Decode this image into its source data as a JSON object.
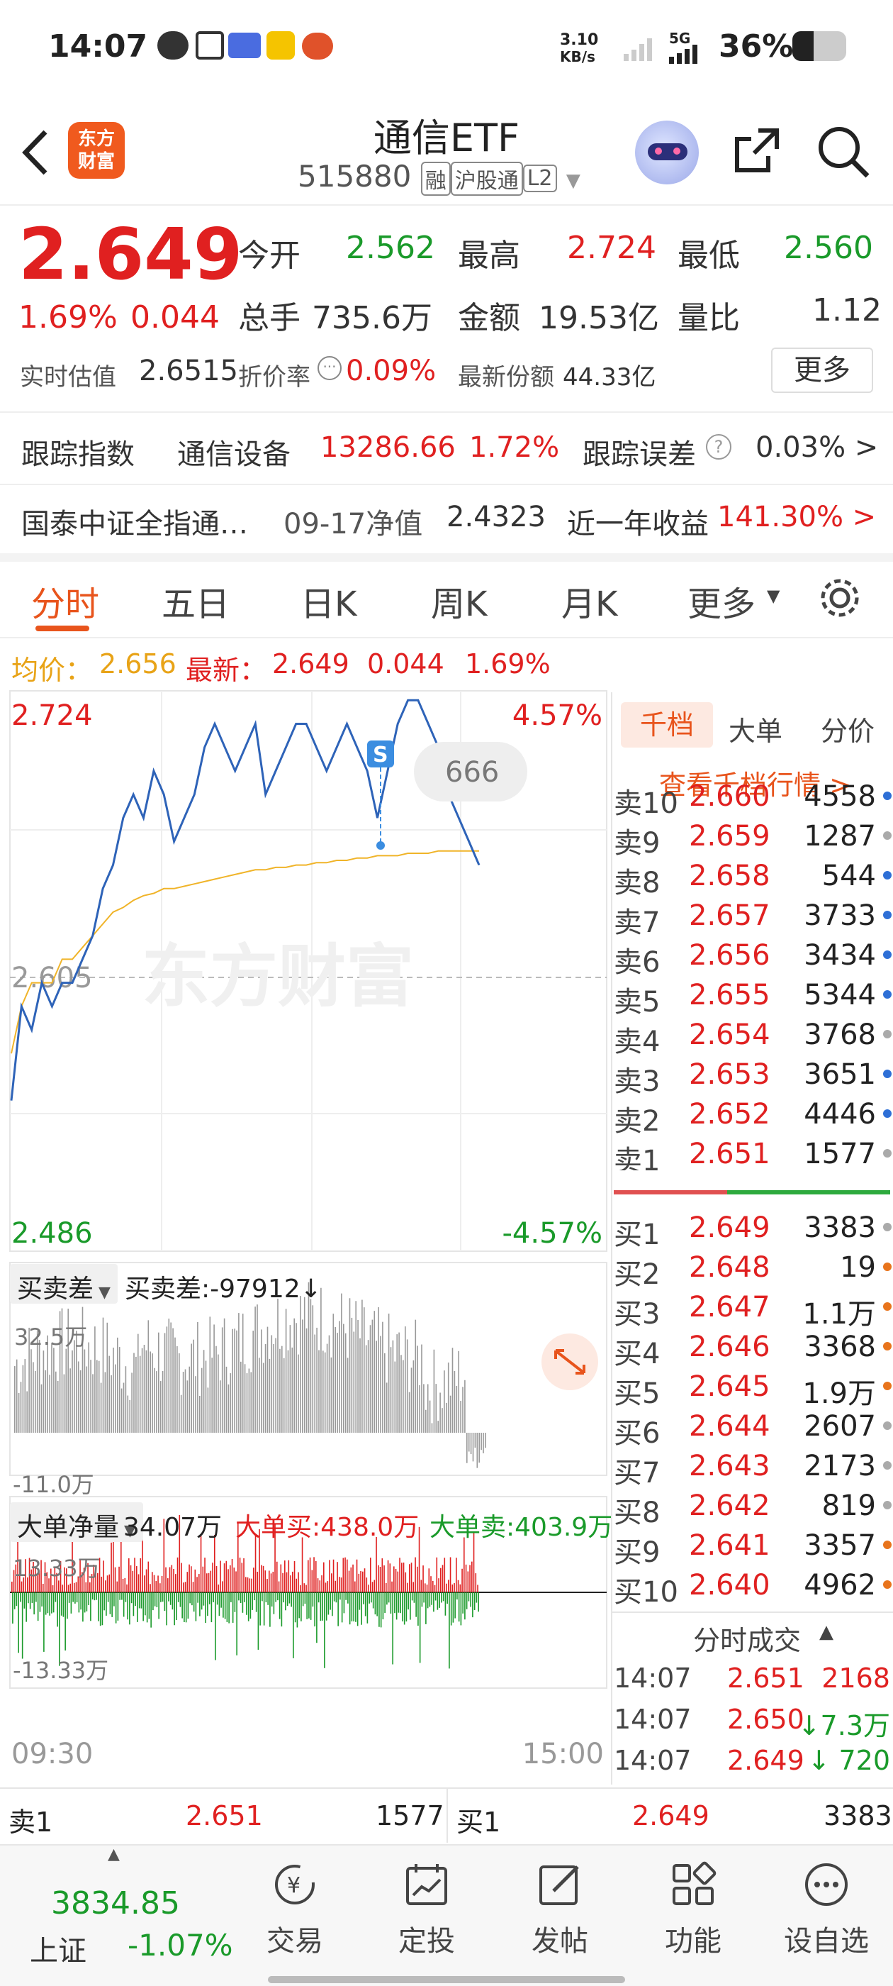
{
  "status": {
    "time": "14:07",
    "speed_top": "3.10",
    "speed_bottom": "KB/s",
    "net": "5G",
    "battery": "36%"
  },
  "header": {
    "logo_line1": "东方",
    "logo_line2": "财富",
    "title": "通信ETF",
    "code": "515880",
    "tag_margin": "融",
    "tag_connect": "沪股通",
    "tag_level": "L2"
  },
  "quote": {
    "price": "2.649",
    "change_pct": "1.69%",
    "change_abs": "0.044",
    "open_label": "今开",
    "open": "2.562",
    "high_label": "最高",
    "high": "2.724",
    "low_label": "最低",
    "low": "2.560",
    "vol_label": "总手",
    "vol": "735.6万",
    "amt_label": "金额",
    "amt": "19.53亿",
    "ratio_label": "量比",
    "ratio": "1.12",
    "iopv_label": "实时估值",
    "iopv": "2.6515",
    "prem_label": "折价率",
    "prem": "0.09%",
    "shares_label": "最新份额",
    "shares": "44.33亿",
    "more": "更多"
  },
  "tracking": {
    "label": "跟踪指数",
    "index": "通信设备",
    "value": "13286.66",
    "pct": "1.72%",
    "err_label": "跟踪误差",
    "err": "0.03% >"
  },
  "fund": {
    "name": "国泰中证全指通…",
    "nav_label": "09-17净值",
    "nav": "2.4323",
    "ret_label": "近一年收益",
    "ret": "141.30% >"
  },
  "tabs": {
    "t1": "分时",
    "t2": "五日",
    "t3": "日K",
    "t4": "周K",
    "t5": "月K",
    "t6": "更多"
  },
  "avgline": {
    "avg_label": "均价：",
    "avg": "2.656",
    "latest_label": "最新：",
    "latest": "2.649",
    "chg": "0.044",
    "pct": "1.69%"
  },
  "chart_data": {
    "type": "line",
    "y_top": "2.724",
    "y_mid": "2.605",
    "y_bottom": "2.486",
    "pct_top": "4.57%",
    "pct_bottom": "-4.57%",
    "x_start": "09:30",
    "x_end": "15:00",
    "bubble": "666",
    "marker": "S",
    "watermark": "东方财富",
    "ylim": [
      2.486,
      2.724
    ],
    "price": [
      2.55,
      2.59,
      2.58,
      2.6,
      2.59,
      2.6,
      2.6,
      2.61,
      2.62,
      2.64,
      2.65,
      2.67,
      2.68,
      2.67,
      2.69,
      2.68,
      2.66,
      2.67,
      2.68,
      2.7,
      2.71,
      2.7,
      2.69,
      2.7,
      2.71,
      2.68,
      2.69,
      2.7,
      2.71,
      2.71,
      2.7,
      2.69,
      2.7,
      2.71,
      2.7,
      2.69,
      2.67,
      2.69,
      2.71,
      2.72,
      2.72,
      2.71,
      2.7,
      2.68,
      2.67,
      2.66,
      2.65
    ],
    "avg": [
      2.57,
      2.59,
      2.6,
      2.6,
      2.6,
      2.61,
      2.61,
      2.615,
      2.62,
      2.625,
      2.63,
      2.632,
      2.635,
      2.637,
      2.638,
      2.64,
      2.64,
      2.641,
      2.642,
      2.643,
      2.644,
      2.645,
      2.646,
      2.647,
      2.648,
      2.648,
      2.649,
      2.649,
      2.65,
      2.65,
      2.651,
      2.651,
      2.652,
      2.652,
      2.653,
      2.653,
      2.654,
      2.654,
      2.654,
      2.655,
      2.655,
      2.655,
      2.656,
      2.656,
      2.656,
      2.656,
      2.656
    ]
  },
  "bs": {
    "label": "买卖差",
    "value": "买卖差:-97912↓",
    "top": "32.5万",
    "bottom": "-11.0万"
  },
  "big": {
    "label": "大单净量",
    "net": "34.07万",
    "buy": "大单买:438.0万",
    "sell": "大单卖:403.9万",
    "top": "13.33万",
    "bottom": "-13.33万"
  },
  "book": {
    "tab1": "千档",
    "tab2": "大单",
    "tab3": "分价",
    "link": "查看千档行情 >",
    "sells": [
      {
        "l": "卖10",
        "p": "2.660",
        "v": "4558"
      },
      {
        "l": "卖9",
        "p": "2.659",
        "v": "1287"
      },
      {
        "l": "卖8",
        "p": "2.658",
        "v": "544"
      },
      {
        "l": "卖7",
        "p": "2.657",
        "v": "3733"
      },
      {
        "l": "卖6",
        "p": "2.656",
        "v": "3434"
      },
      {
        "l": "卖5",
        "p": "2.655",
        "v": "5344"
      },
      {
        "l": "卖4",
        "p": "2.654",
        "v": "3768"
      },
      {
        "l": "卖3",
        "p": "2.653",
        "v": "3651"
      },
      {
        "l": "卖2",
        "p": "2.652",
        "v": "4446"
      },
      {
        "l": "卖1",
        "p": "2.651",
        "v": "1577"
      }
    ],
    "buys": [
      {
        "l": "买1",
        "p": "2.649",
        "v": "3383"
      },
      {
        "l": "买2",
        "p": "2.648",
        "v": "19"
      },
      {
        "l": "买3",
        "p": "2.647",
        "v": "1.1万"
      },
      {
        "l": "买4",
        "p": "2.646",
        "v": "3368"
      },
      {
        "l": "买5",
        "p": "2.645",
        "v": "1.9万"
      },
      {
        "l": "买6",
        "p": "2.644",
        "v": "2607"
      },
      {
        "l": "买7",
        "p": "2.643",
        "v": "2173"
      },
      {
        "l": "买8",
        "p": "2.642",
        "v": "819"
      },
      {
        "l": "买9",
        "p": "2.641",
        "v": "3357"
      },
      {
        "l": "买10",
        "p": "2.640",
        "v": "4962"
      }
    ],
    "ticks_label": "分时成交",
    "ticks": [
      {
        "t": "14:07",
        "p": "2.651",
        "v": "2168"
      },
      {
        "t": "14:07",
        "p": "2.650",
        "v": "↓7.3万"
      },
      {
        "t": "14:07",
        "p": "2.649",
        "v": "↓ 720"
      }
    ]
  },
  "strip": {
    "s_label": "卖1",
    "s_price": "2.651",
    "s_vol": "1577",
    "b_label": "买1",
    "b_price": "2.649",
    "b_vol": "3383"
  },
  "bottom": {
    "index_val": "3834.85",
    "index_name": "上证",
    "index_pct": "-1.07%",
    "n1": "交易",
    "n2": "定投",
    "n3": "发帖",
    "n4": "功能",
    "n5": "设自选"
  }
}
